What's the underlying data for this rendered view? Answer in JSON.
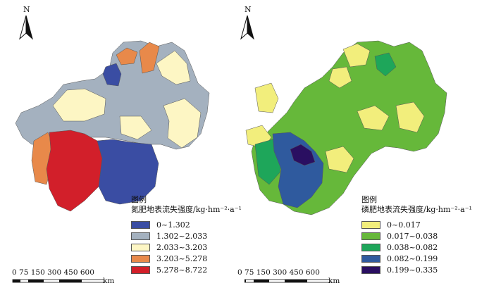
{
  "maps": [
    {
      "north_label": "N",
      "legend": {
        "heading": "图例",
        "title": "氮肥地表流失强度/kg·hm⁻²·a⁻¹",
        "classes": [
          {
            "label": "0~1.302",
            "color": "#3a4da3"
          },
          {
            "label": "1.302~2.033",
            "color": "#a4b1bf"
          },
          {
            "label": "2.033~3.203",
            "color": "#fdf6c4"
          },
          {
            "label": "3.203~5.278",
            "color": "#e8894a"
          },
          {
            "label": "5.278~8.722",
            "color": "#d21f2a"
          }
        ]
      },
      "scale_bar": {
        "ticks": "0 75 150 300 450 600",
        "unit": "km"
      }
    },
    {
      "north_label": "N",
      "legend": {
        "heading": "图例",
        "title": "磷肥地表流失强度/kg·hm⁻²·a⁻¹",
        "classes": [
          {
            "label": "0~0.017",
            "color": "#f2ee7c"
          },
          {
            "label": "0.017~0.038",
            "color": "#66b83a"
          },
          {
            "label": "0.038~0.082",
            "color": "#1ea65a"
          },
          {
            "label": "0.082~0.199",
            "color": "#2f5a9e"
          },
          {
            "label": "0.199~0.335",
            "color": "#2a0f61"
          }
        ]
      },
      "scale_bar": {
        "ticks": "0 75 150 300 450 600",
        "unit": "km"
      }
    }
  ]
}
